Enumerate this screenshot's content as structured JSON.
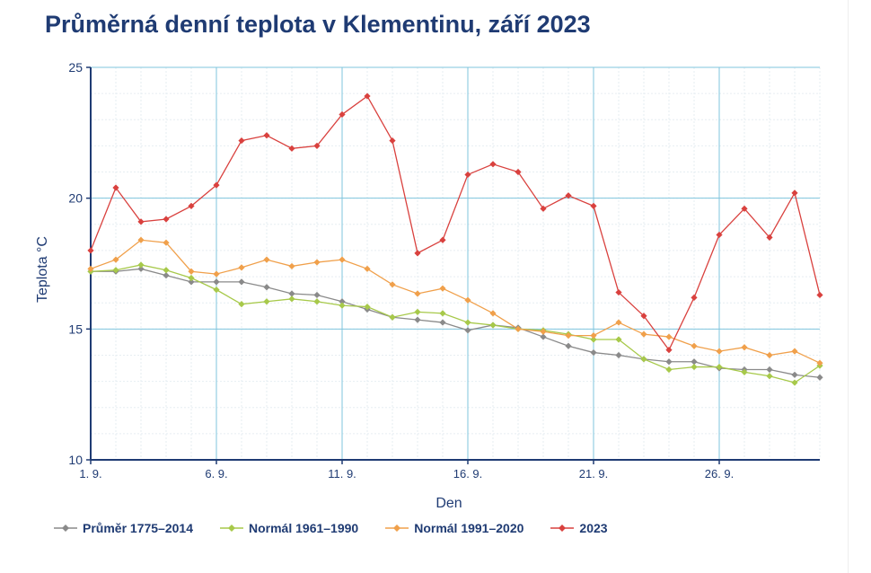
{
  "chart_data": {
    "type": "line",
    "title": "Průměrná denní teplota v Klementinu, září 2023",
    "xlabel": "Den",
    "ylabel": "Teplota °C",
    "x": [
      1,
      2,
      3,
      4,
      5,
      6,
      7,
      8,
      9,
      10,
      11,
      12,
      13,
      14,
      15,
      16,
      17,
      18,
      19,
      20,
      21,
      22,
      23,
      24,
      25,
      26,
      27,
      28,
      29,
      30
    ],
    "x_ticks": [
      1,
      6,
      11,
      16,
      21,
      26
    ],
    "x_tick_labels": [
      "1. 9.",
      "6. 9.",
      "11. 9.",
      "16. 9.",
      "21. 9.",
      "26. 9."
    ],
    "xlim": [
      1,
      30
    ],
    "ylim": [
      10,
      25
    ],
    "y_ticks": [
      10,
      15,
      20,
      25
    ],
    "y_tick_labels": [
      "10",
      "15",
      "20",
      "25"
    ],
    "grid": true,
    "legend_position": "bottom",
    "series": [
      {
        "name": "Průměr 1775–2014",
        "color": "#8a8a8a",
        "values": [
          17.2,
          17.2,
          17.3,
          17.05,
          16.8,
          16.8,
          16.8,
          16.6,
          16.35,
          16.3,
          16.05,
          15.75,
          15.45,
          15.35,
          15.25,
          14.95,
          15.15,
          15.05,
          14.7,
          14.35,
          14.1,
          14.0,
          13.85,
          13.75,
          13.75,
          13.5,
          13.45,
          13.45,
          13.25,
          13.15
        ]
      },
      {
        "name": "Normál 1961–1990",
        "color": "#a7c94a",
        "values": [
          17.2,
          17.25,
          17.45,
          17.25,
          16.95,
          16.5,
          15.95,
          16.05,
          16.15,
          16.05,
          15.9,
          15.85,
          15.45,
          15.65,
          15.6,
          15.25,
          15.15,
          15.0,
          14.95,
          14.8,
          14.6,
          14.6,
          13.85,
          13.45,
          13.55,
          13.55,
          13.35,
          13.2,
          12.95,
          13.6
        ]
      },
      {
        "name": "Normál 1991–2020",
        "color": "#f0a04b",
        "values": [
          17.3,
          17.65,
          18.4,
          18.3,
          17.2,
          17.1,
          17.35,
          17.65,
          17.4,
          17.55,
          17.65,
          17.3,
          16.7,
          16.35,
          16.55,
          16.1,
          15.6,
          15.0,
          14.9,
          14.75,
          14.75,
          15.25,
          14.8,
          14.7,
          14.35,
          14.15,
          14.3,
          14.0,
          14.15,
          13.7
        ]
      },
      {
        "name": "2023",
        "color": "#d9413e",
        "values": [
          18.0,
          20.4,
          19.1,
          19.2,
          19.7,
          20.5,
          22.2,
          22.4,
          21.9,
          22.0,
          23.2,
          23.9,
          22.2,
          17.9,
          18.4,
          20.9,
          21.3,
          21.0,
          19.6,
          20.1,
          19.7,
          16.4,
          15.5,
          14.2,
          16.2,
          18.6,
          19.6,
          18.5,
          20.2,
          16.3
        ]
      }
    ]
  },
  "colors": {
    "title": "#1f3b73",
    "axis": "#1f3b73",
    "major_grid": "#7fc5dd",
    "minor_grid": "#e6eef2"
  }
}
